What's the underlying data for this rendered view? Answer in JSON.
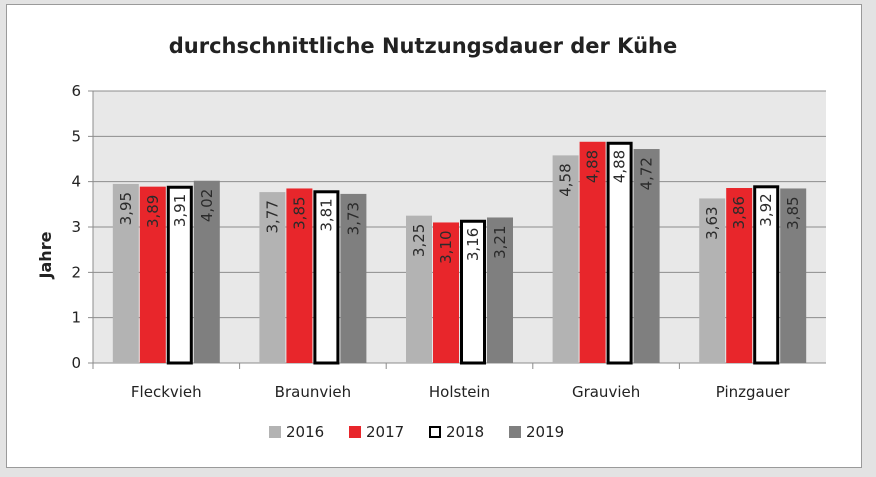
{
  "chart_data": {
    "type": "bar",
    "title": "durchschnittliche Nutzungsdauer der Kühe",
    "ylabel": "Jahre",
    "xlabel": "",
    "ylim": [
      0,
      6
    ],
    "yticks": [
      "0",
      "1",
      "2",
      "3",
      "4",
      "5",
      "6"
    ],
    "grid": true,
    "legend_position": "bottom",
    "categories": [
      "Fleckvieh",
      "Braunvieh",
      "Holstein",
      "Grauvieh",
      "Pinzgauer"
    ],
    "series": [
      {
        "name": "2016",
        "color": "#b3b3b3",
        "stroke": "",
        "values": [
          3.95,
          3.77,
          3.25,
          4.58,
          3.63
        ],
        "labels": [
          "3,95",
          "3,77",
          "3,25",
          "4,58",
          "3,63"
        ]
      },
      {
        "name": "2017",
        "color": "#e8262b",
        "stroke": "",
        "values": [
          3.89,
          3.85,
          3.1,
          4.88,
          3.86
        ],
        "labels": [
          "3,89",
          "3,85",
          "3,10",
          "4,88",
          "3,86"
        ]
      },
      {
        "name": "2018",
        "color": "#ffffff",
        "stroke": "#000000",
        "values": [
          3.91,
          3.81,
          3.16,
          4.88,
          3.92
        ],
        "labels": [
          "3,91",
          "3,81",
          "3,16",
          "4,88",
          "3,92"
        ]
      },
      {
        "name": "2019",
        "color": "#7f7f7f",
        "stroke": "",
        "values": [
          4.02,
          3.73,
          3.21,
          4.72,
          3.85
        ],
        "labels": [
          "4,02",
          "3,73",
          "3,21",
          "4,72",
          "3,85"
        ]
      }
    ]
  }
}
